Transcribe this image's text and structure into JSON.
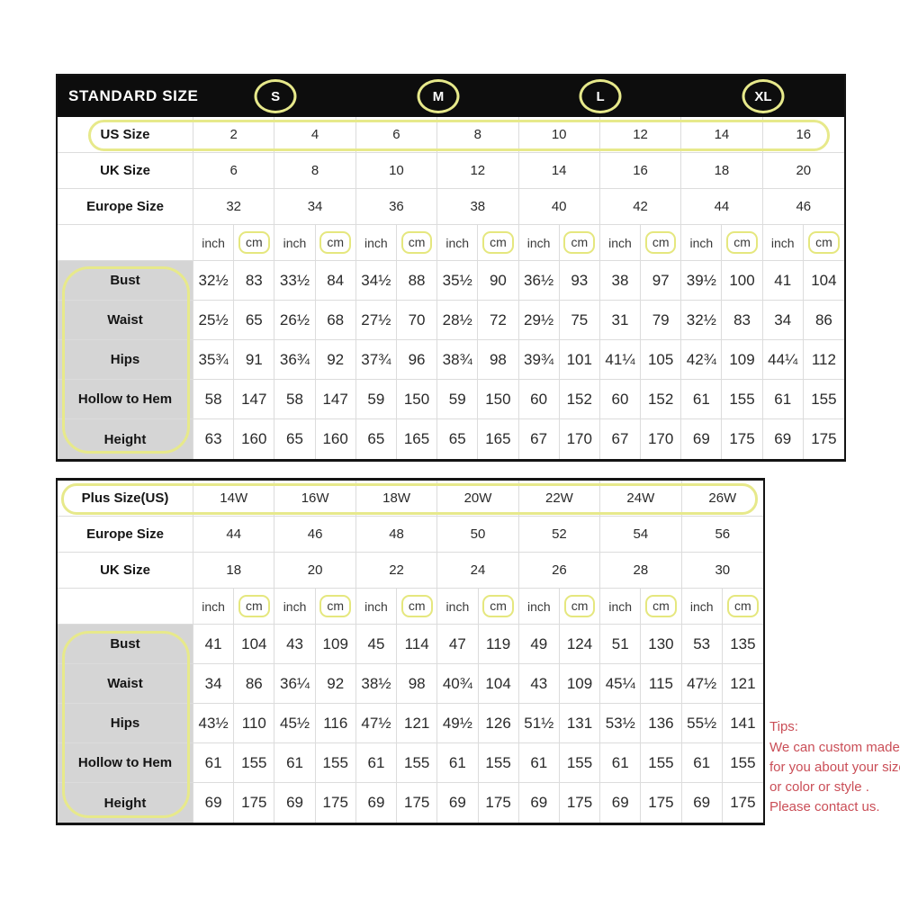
{
  "colors": {
    "highlight_yellow": "#e7e98b",
    "header_black": "#0d0d0d",
    "label_gray": "#d5d5d5",
    "tips_red": "#ca4e57"
  },
  "standard_table": {
    "title": "STANDARD SIZE",
    "size_badges": [
      "S",
      "M",
      "L",
      "XL"
    ],
    "size_rows": [
      {
        "label": "US Size",
        "values": [
          "2",
          "4",
          "6",
          "8",
          "10",
          "12",
          "14",
          "16"
        ]
      },
      {
        "label": "UK Size",
        "values": [
          "6",
          "8",
          "10",
          "12",
          "14",
          "16",
          "18",
          "20"
        ]
      },
      {
        "label": "Europe Size",
        "values": [
          "32",
          "34",
          "36",
          "38",
          "40",
          "42",
          "44",
          "46"
        ]
      }
    ],
    "unit_labels": {
      "inch": "inch",
      "cm": "cm"
    },
    "measure_rows": [
      {
        "label": "Bust",
        "values": [
          "32½",
          "83",
          "33½",
          "84",
          "34½",
          "88",
          "35½",
          "90",
          "36½",
          "93",
          "38",
          "97",
          "39½",
          "100",
          "41",
          "104"
        ]
      },
      {
        "label": "Waist",
        "values": [
          "25½",
          "65",
          "26½",
          "68",
          "27½",
          "70",
          "28½",
          "72",
          "29½",
          "75",
          "31",
          "79",
          "32½",
          "83",
          "34",
          "86"
        ]
      },
      {
        "label": "Hips",
        "values": [
          "35¾",
          "91",
          "36¾",
          "92",
          "37¾",
          "96",
          "38¾",
          "98",
          "39¾",
          "101",
          "41¼",
          "105",
          "42¾",
          "109",
          "44¼",
          "112"
        ]
      },
      {
        "label": "Hollow to Hem",
        "values": [
          "58",
          "147",
          "58",
          "147",
          "59",
          "150",
          "59",
          "150",
          "60",
          "152",
          "60",
          "152",
          "61",
          "155",
          "61",
          "155"
        ]
      },
      {
        "label": "Height",
        "values": [
          "63",
          "160",
          "65",
          "160",
          "65",
          "165",
          "65",
          "165",
          "67",
          "170",
          "67",
          "170",
          "69",
          "175",
          "69",
          "175"
        ]
      }
    ]
  },
  "plus_table": {
    "size_rows": [
      {
        "label": "Plus Size(US)",
        "values": [
          "14W",
          "16W",
          "18W",
          "20W",
          "22W",
          "24W",
          "26W"
        ]
      },
      {
        "label": "Europe Size",
        "values": [
          "44",
          "46",
          "48",
          "50",
          "52",
          "54",
          "56"
        ]
      },
      {
        "label": "UK Size",
        "values": [
          "18",
          "20",
          "22",
          "24",
          "26",
          "28",
          "30"
        ]
      }
    ],
    "unit_labels": {
      "inch": "inch",
      "cm": "cm"
    },
    "measure_rows": [
      {
        "label": "Bust",
        "values": [
          "41",
          "104",
          "43",
          "109",
          "45",
          "114",
          "47",
          "119",
          "49",
          "124",
          "51",
          "130",
          "53",
          "135"
        ]
      },
      {
        "label": "Waist",
        "values": [
          "34",
          "86",
          "36¼",
          "92",
          "38½",
          "98",
          "40¾",
          "104",
          "43",
          "109",
          "45¼",
          "115",
          "47½",
          "121"
        ]
      },
      {
        "label": "Hips",
        "values": [
          "43½",
          "110",
          "45½",
          "116",
          "47½",
          "121",
          "49½",
          "126",
          "51½",
          "131",
          "53½",
          "136",
          "55½",
          "141"
        ]
      },
      {
        "label": "Hollow to Hem",
        "values": [
          "61",
          "155",
          "61",
          "155",
          "61",
          "155",
          "61",
          "155",
          "61",
          "155",
          "61",
          "155",
          "61",
          "155"
        ]
      },
      {
        "label": "Height",
        "values": [
          "69",
          "175",
          "69",
          "175",
          "69",
          "175",
          "69",
          "175",
          "69",
          "175",
          "69",
          "175",
          "69",
          "175"
        ]
      }
    ]
  },
  "tips": {
    "title": "Tips:",
    "lines": [
      "We can custom made",
      "for you about your size",
      "or color or style .",
      "Please contact us."
    ]
  }
}
